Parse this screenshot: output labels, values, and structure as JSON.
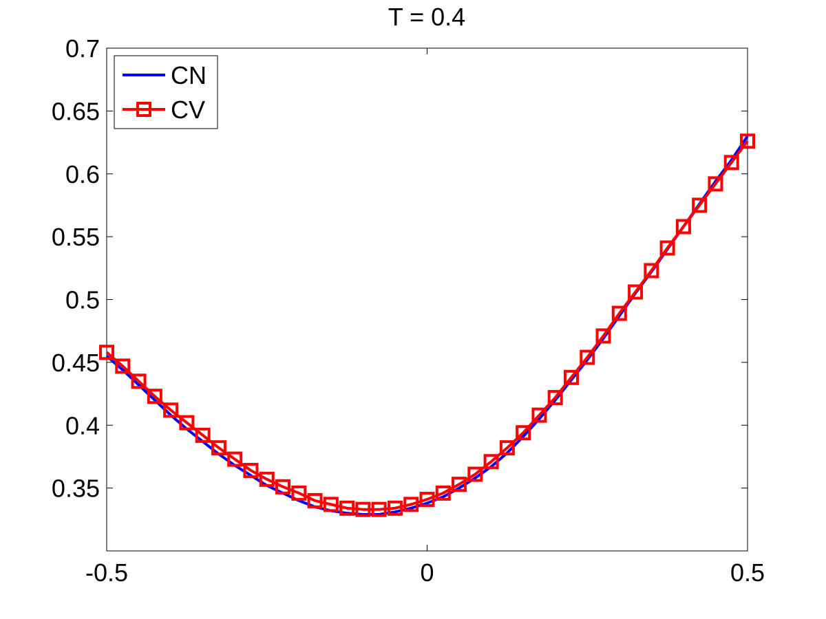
{
  "chart_data": {
    "type": "line",
    "title": "T = 0.4",
    "xlabel": "",
    "ylabel": "",
    "xlim": [
      -0.5,
      0.5
    ],
    "ylim": [
      0.3,
      0.7
    ],
    "xticks": [
      "-0.5",
      "0",
      "0.5"
    ],
    "yticks": [
      "0.35",
      "0.4",
      "0.45",
      "0.5",
      "0.55",
      "0.6",
      "0.65",
      "0.7"
    ],
    "grid": false,
    "legend_position": "top-left",
    "series": [
      {
        "name": "CN",
        "color": "#0000ff",
        "marker": "none",
        "x": [
          -0.5,
          -0.475,
          -0.45,
          -0.425,
          -0.4,
          -0.375,
          -0.35,
          -0.325,
          -0.3,
          -0.275,
          -0.25,
          -0.225,
          -0.2,
          -0.175,
          -0.15,
          -0.125,
          -0.1,
          -0.075,
          -0.05,
          -0.025,
          0,
          0.025,
          0.05,
          0.075,
          0.1,
          0.125,
          0.15,
          0.175,
          0.2,
          0.225,
          0.25,
          0.275,
          0.3,
          0.325,
          0.35,
          0.375,
          0.4,
          0.425,
          0.45,
          0.475,
          0.5
        ],
        "y": [
          0.455,
          0.444,
          0.432,
          0.42,
          0.408,
          0.397,
          0.387,
          0.377,
          0.368,
          0.36,
          0.352,
          0.346,
          0.34,
          0.335,
          0.332,
          0.33,
          0.329,
          0.329,
          0.331,
          0.334,
          0.338,
          0.343,
          0.35,
          0.358,
          0.367,
          0.378,
          0.391,
          0.405,
          0.42,
          0.436,
          0.452,
          0.469,
          0.487,
          0.505,
          0.522,
          0.54,
          0.558,
          0.576,
          0.594,
          0.611,
          0.63
        ]
      },
      {
        "name": "CV",
        "color": "#ff0000",
        "marker": "square",
        "x": [
          -0.5,
          -0.475,
          -0.45,
          -0.425,
          -0.4,
          -0.375,
          -0.35,
          -0.325,
          -0.3,
          -0.275,
          -0.25,
          -0.225,
          -0.2,
          -0.175,
          -0.15,
          -0.125,
          -0.1,
          -0.075,
          -0.05,
          -0.025,
          0,
          0.025,
          0.05,
          0.075,
          0.1,
          0.125,
          0.15,
          0.175,
          0.2,
          0.225,
          0.25,
          0.275,
          0.3,
          0.325,
          0.35,
          0.375,
          0.4,
          0.425,
          0.45,
          0.475,
          0.5
        ],
        "y": [
          0.458,
          0.447,
          0.435,
          0.423,
          0.412,
          0.402,
          0.392,
          0.382,
          0.373,
          0.364,
          0.357,
          0.351,
          0.346,
          0.34,
          0.337,
          0.334,
          0.333,
          0.333,
          0.334,
          0.337,
          0.341,
          0.346,
          0.353,
          0.361,
          0.371,
          0.382,
          0.394,
          0.408,
          0.422,
          0.438,
          0.454,
          0.471,
          0.489,
          0.506,
          0.523,
          0.541,
          0.558,
          0.575,
          0.592,
          0.609,
          0.626
        ]
      }
    ]
  }
}
